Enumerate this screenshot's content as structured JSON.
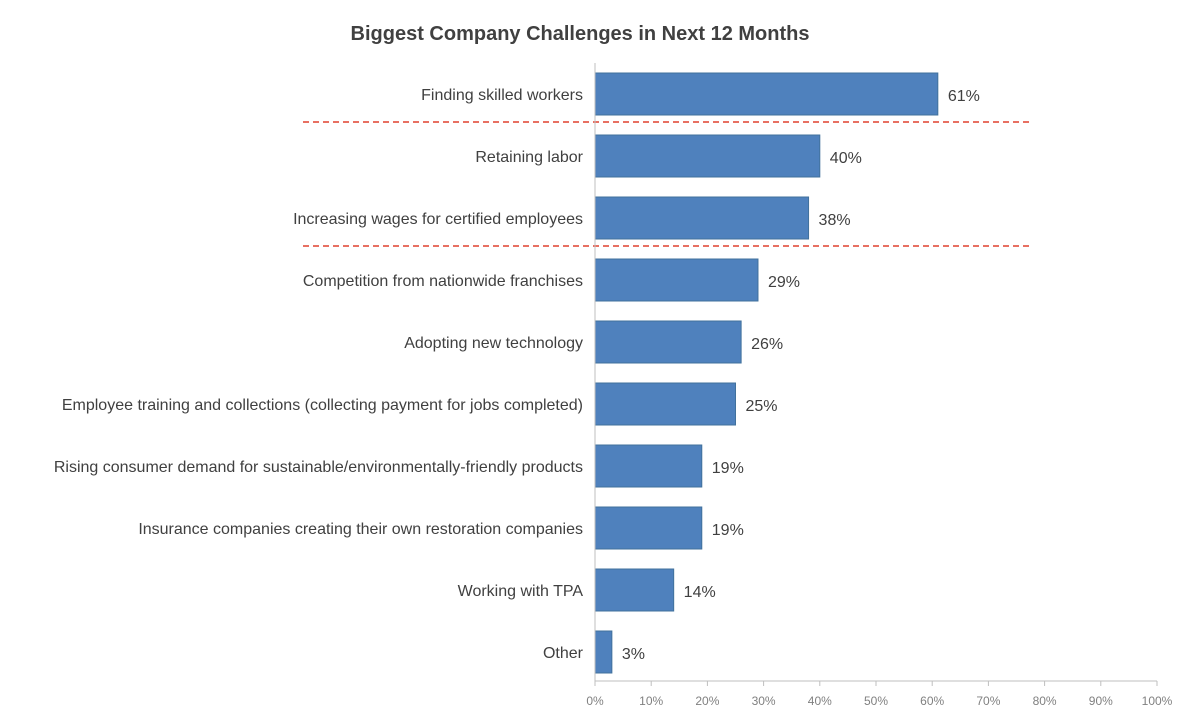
{
  "chart_data": {
    "type": "bar",
    "orientation": "horizontal",
    "title": "Biggest Company Challenges in Next 12 Months",
    "categories": [
      "Finding skilled workers",
      "Retaining labor",
      "Increasing wages for certified employees",
      "Competition from nationwide franchises",
      "Adopting new technology",
      "Employee training and collections (collecting payment for jobs completed)",
      "Rising consumer demand for sustainable/environmentally-friendly products",
      "Insurance companies creating their own restoration companies",
      "Working with TPA",
      "Other"
    ],
    "values": [
      61,
      40,
      38,
      29,
      26,
      25,
      19,
      19,
      14,
      3
    ],
    "value_labels": [
      "61%",
      "40%",
      "38%",
      "29%",
      "26%",
      "25%",
      "19%",
      "19%",
      "14%",
      "3%"
    ],
    "xlim": [
      0,
      100
    ],
    "x_ticks": [
      "0%",
      "10%",
      "20%",
      "30%",
      "40%",
      "50%",
      "60%",
      "70%",
      "80%",
      "90%",
      "100%"
    ],
    "grid": false,
    "bar_color": "#4F81BD",
    "separator_color": "#E0402F",
    "separators_after_category_index": [
      0,
      2
    ]
  }
}
